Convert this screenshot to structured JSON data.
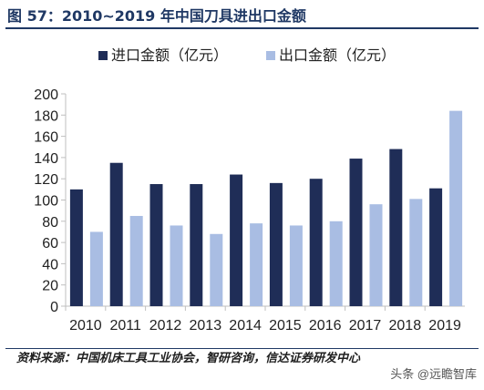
{
  "header": {
    "title": "图 57：2010~2019 年中国刀具进出口金额"
  },
  "footer": {
    "source": "资料来源：中国机床工具工业协会，智研咨询，信达证券研发中心",
    "watermark": "头条 @远瞻智库"
  },
  "chart_data": {
    "type": "bar",
    "categories": [
      "2010",
      "2011",
      "2012",
      "2013",
      "2014",
      "2015",
      "2016",
      "2017",
      "2018",
      "2019"
    ],
    "series": [
      {
        "name": "进口金额（亿元）",
        "color": "#1f2d57",
        "values": [
          110,
          135,
          115,
          115,
          124,
          116,
          120,
          139,
          148,
          111
        ]
      },
      {
        "name": "出口金额（亿元）",
        "color": "#a9bde3",
        "values": [
          70,
          85,
          76,
          68,
          78,
          76,
          80,
          96,
          101,
          184
        ]
      }
    ],
    "ylim": [
      0,
      200
    ],
    "yticks": [
      "0",
      "20",
      "40",
      "60",
      "80",
      "100",
      "120",
      "140",
      "160",
      "180",
      "200"
    ],
    "grid": false,
    "legend_position": "top"
  }
}
